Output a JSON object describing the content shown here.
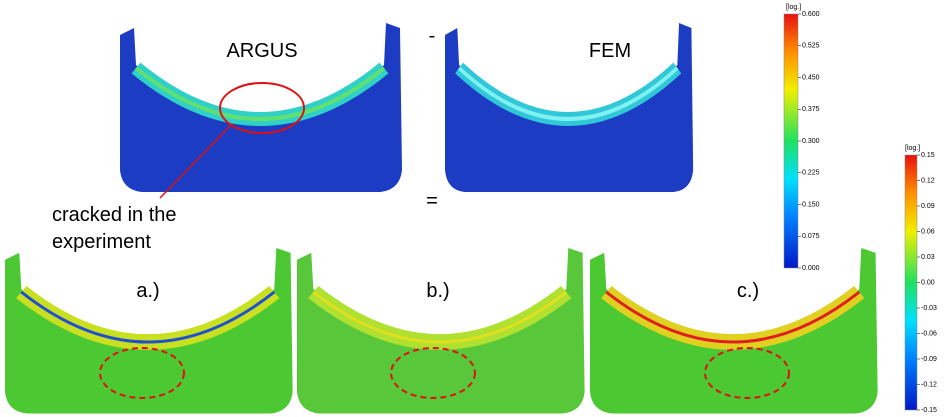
{
  "labels": {
    "argus": "ARGUS",
    "fem": "FEM",
    "minus": "-",
    "equals": "=",
    "annotation": [
      "cracked in the",
      "experiment"
    ],
    "panels": [
      "a.)",
      "b.)",
      "c.)"
    ]
  },
  "colorbars": [
    {
      "unit": "[log.]",
      "ticks": [
        "0.600",
        "0.525",
        "0.450",
        "0.375",
        "0.300",
        "0.225",
        "0.150",
        "0.075",
        "0.000"
      ]
    },
    {
      "unit": "[log.]",
      "ticks": [
        "0.15",
        "0.12",
        "0.09",
        "0.06",
        "0.03",
        "0.00",
        "-0.03",
        "-0.06",
        "-0.09",
        "-0.12",
        "-0.15"
      ]
    }
  ]
}
